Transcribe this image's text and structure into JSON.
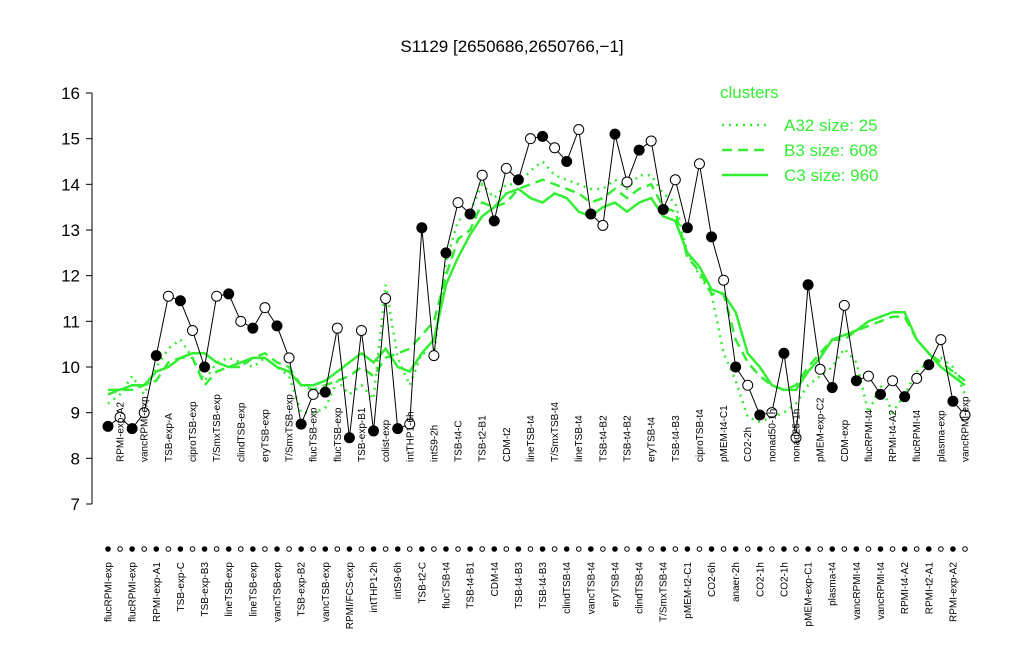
{
  "chart_data": {
    "type": "line",
    "title": "S1129 [2650686,2650766,−1]",
    "categories": [
      "flucRPMI-exp",
      "RPMI-exp-A2",
      "flucRPMI-exp",
      "vancRPMI-exp",
      "RPMI-exp-A1",
      "TSB-exp-A",
      "TSB-exp-C",
      "ciproTSB-exp",
      "TSB-exp-B3",
      "T/SmxTSB-exp",
      "lineTSB-exp",
      "clindTSB-exp",
      "lineTSB-exp",
      "eryTSB-exp",
      "vancTSB-exp",
      "T/SmxTSB-exp",
      "TSB-exp-B2",
      "flucTSB-exp",
      "vancTSB-exp",
      "flucTSB-exp",
      "RPMI/FCS-exp",
      "TSB-exp-B1",
      "intTHP1-2h",
      "colist-exp",
      "intS9-6h",
      "intTHP1-6h",
      "TSB-t2-C",
      "intS9-2h",
      "flucTSB-t4",
      "TSB-t4-C",
      "TSB-t4-B1",
      "TSB-t2-B1",
      "CDM-t4",
      "CDM-t2",
      "TSB-t4-B3",
      "lineTSB-t4",
      "TSB-t4-B3",
      "T/SmxTSB-t4",
      "clindTSB-t4",
      "lineTSB-t4",
      "vancTSB-t4",
      "TSB-t4-B2",
      "eryTSB-t4",
      "TSB-t4-B2",
      "clindTSB-t4",
      "eryTSB-t4",
      "T/SmxTSB-t4",
      "TSB-t4-B3",
      "pMEM-t2-C1",
      "ciproTSB-t4",
      "CO2-6h",
      "pMEM-t4-C1",
      "anaer-2h",
      "CO2-2h",
      "CO2-1h",
      "nonad50-1h",
      "CO2-1h",
      "nonad25-1h",
      "pMEM-exp-C1",
      "pMEM-exp-C2",
      "plasma-t4",
      "CDM-exp",
      "vancRPMI-t4",
      "flucRPMI-t4",
      "vancRPMI-t4",
      "RPMI-t4-A2",
      "RPMI-t4-A2",
      "flucRPMI-t4",
      "RPMI-t2-A1",
      "plasma-exp",
      "RPMI-exp-A2",
      "vancRPMI-exp"
    ],
    "values": [
      8.7,
      8.9,
      8.65,
      9.0,
      10.25,
      11.55,
      11.45,
      10.8,
      10.0,
      11.55,
      11.6,
      11.0,
      10.85,
      11.3,
      10.9,
      10.2,
      8.75,
      9.4,
      9.45,
      10.85,
      8.45,
      10.8,
      8.6,
      11.5,
      8.65,
      8.75,
      13.05,
      10.25,
      12.5,
      13.6,
      13.35,
      14.2,
      13.2,
      14.35,
      14.1,
      15.0,
      15.05,
      14.8,
      14.5,
      15.2,
      13.35,
      13.1,
      15.1,
      14.05,
      14.75,
      14.95,
      13.45,
      14.1,
      13.05,
      14.45,
      12.85,
      11.9,
      10.0,
      9.6,
      8.95,
      9.0,
      10.3,
      8.45,
      11.8,
      9.95,
      9.55,
      11.35,
      9.7,
      9.8,
      9.4,
      9.7,
      9.35,
      9.75,
      10.05,
      10.6,
      9.25,
      8.95
    ],
    "legend_title": "clusters",
    "series": [
      {
        "name": "A32 size: 25",
        "color": "#33ee33",
        "dash": "dotted",
        "values": [
          9.2,
          9.4,
          9.8,
          9.4,
          10.0,
          10.4,
          10.6,
          10.2,
          9.7,
          10.1,
          10.2,
          10.1,
          10.0,
          10.2,
          10.0,
          9.8,
          9.0,
          9.0,
          9.1,
          9.7,
          9.4,
          9.6,
          9.3,
          11.8,
          10.2,
          9.6,
          10.3,
          10.3,
          12.3,
          13.2,
          13.4,
          14.0,
          13.7,
          14.0,
          14.0,
          14.3,
          14.5,
          14.2,
          14.1,
          14.0,
          13.9,
          13.9,
          14.1,
          13.9,
          14.2,
          14.2,
          13.8,
          13.6,
          12.5,
          12.0,
          11.6,
          10.3,
          9.7,
          8.9,
          8.8,
          8.9,
          9.0,
          9.2,
          9.6,
          9.8,
          10.0,
          10.4,
          10.1,
          9.0,
          9.6,
          9.0,
          9.4,
          9.9,
          10.1,
          10.2,
          10.0,
          9.4
        ]
      },
      {
        "name": "B3 size: 608",
        "color": "#33ee33",
        "dash": "dashed",
        "values": [
          9.4,
          9.5,
          9.5,
          9.6,
          9.7,
          10.1,
          10.2,
          10.2,
          9.6,
          9.9,
          10.0,
          10.0,
          10.2,
          10.3,
          10.1,
          10.0,
          9.6,
          9.5,
          9.6,
          9.7,
          9.8,
          10.0,
          9.8,
          10.2,
          10.3,
          10.4,
          10.7,
          11.0,
          12.0,
          12.8,
          13.0,
          13.6,
          13.5,
          13.6,
          13.9,
          14.0,
          14.1,
          14.0,
          13.9,
          13.8,
          13.6,
          13.7,
          13.9,
          13.7,
          13.9,
          14.0,
          13.5,
          13.4,
          12.4,
          12.1,
          11.6,
          11.6,
          10.6,
          10.1,
          9.8,
          9.6,
          9.5,
          9.6,
          10.0,
          10.3,
          10.6,
          10.6,
          10.8,
          10.9,
          11.0,
          11.1,
          11.1,
          10.6,
          10.3,
          10.1,
          9.9,
          9.7
        ]
      },
      {
        "name": "C3 size: 960",
        "color": "#33ee33",
        "dash": "solid",
        "values": [
          9.5,
          9.5,
          9.6,
          9.6,
          9.9,
          10.0,
          10.2,
          10.3,
          10.3,
          10.1,
          10.0,
          10.1,
          10.2,
          10.2,
          10.0,
          9.9,
          9.6,
          9.6,
          9.7,
          9.9,
          10.1,
          10.3,
          10.1,
          10.4,
          10.0,
          9.9,
          10.3,
          10.6,
          11.8,
          12.4,
          12.9,
          13.3,
          13.5,
          13.8,
          13.9,
          13.7,
          13.6,
          13.8,
          13.7,
          13.4,
          13.3,
          13.5,
          13.6,
          13.4,
          13.6,
          13.7,
          13.3,
          13.2,
          12.5,
          12.2,
          11.7,
          11.6,
          11.2,
          10.3,
          10.0,
          9.6,
          9.5,
          9.5,
          9.9,
          10.2,
          10.6,
          10.7,
          10.8,
          11.0,
          11.1,
          11.2,
          11.2,
          10.6,
          10.3,
          10.0,
          9.8,
          9.6
        ]
      }
    ],
    "ylim": [
      7,
      16
    ],
    "yticks": [
      7,
      8,
      9,
      10,
      11,
      12,
      13,
      14,
      15,
      16
    ]
  }
}
